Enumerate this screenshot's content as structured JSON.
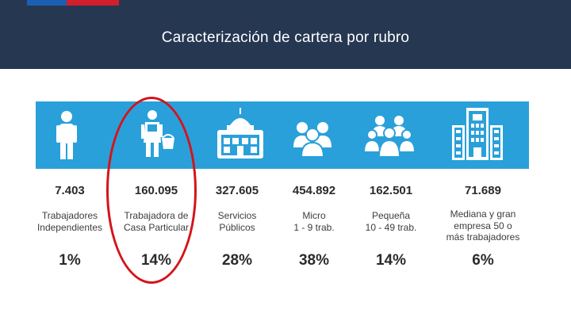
{
  "header": {
    "title": "Caracterización de cartera por rubro"
  },
  "colors": {
    "header_bg": "#263752",
    "band": "#2aa0da",
    "highlight": "#d4141a",
    "flag_blue": "#1a5fb4",
    "flag_red": "#d21f2b"
  },
  "categories": [
    {
      "icon": "person-icon",
      "count": "7.403",
      "label_lines": [
        "Trabajadores",
        "Independientes"
      ],
      "percent": "1%"
    },
    {
      "icon": "worker-bucket-icon",
      "count": "160.095",
      "label_lines": [
        "Trabajadora de",
        "Casa Particular"
      ],
      "percent": "14%"
    },
    {
      "icon": "government-building-icon",
      "count": "327.605",
      "label_lines": [
        "Servicios",
        "Públicos"
      ],
      "percent": "28%"
    },
    {
      "icon": "small-group-icon",
      "count": "454.892",
      "label_lines": [
        "Micro",
        "1 - 9 trab."
      ],
      "percent": "38%"
    },
    {
      "icon": "medium-group-icon",
      "count": "162.501",
      "label_lines": [
        "Pequeña",
        "10 - 49 trab."
      ],
      "percent": "14%"
    },
    {
      "icon": "office-building-icon",
      "count": "71.689",
      "label_lines": [
        "Mediana y gran",
        "empresa 50 o",
        "más trabajadores"
      ],
      "percent": "6%"
    }
  ]
}
